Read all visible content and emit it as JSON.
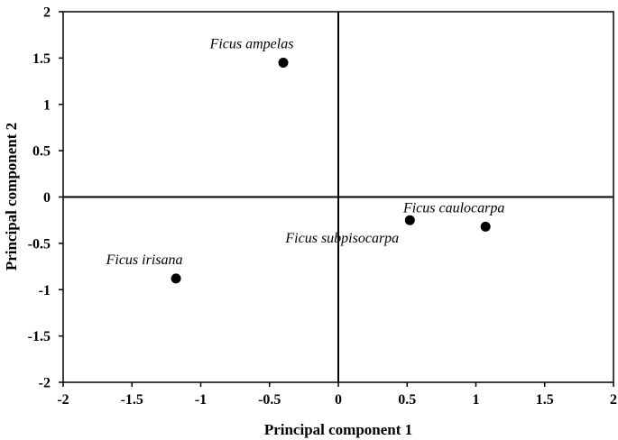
{
  "chart_data": {
    "type": "scatter",
    "title": "",
    "xlabel": "Principal component 1",
    "ylabel": "Principal component 2",
    "xlim": [
      -2,
      2
    ],
    "ylim": [
      -2,
      2
    ],
    "x_ticks": [
      "-2",
      "-1.5",
      "-1",
      "-0.5",
      "0",
      "0.5",
      "1",
      "1.5",
      "2"
    ],
    "y_ticks": [
      "2",
      "1.5",
      "1",
      "0.5",
      "0",
      "-0.5",
      "-1",
      "-1.5",
      "-2"
    ],
    "grid": false,
    "legend": "none",
    "marker_color": "#000000",
    "points": [
      {
        "label": "Ficus ampelas",
        "x": -0.4,
        "y": 1.45,
        "label_pos": "above-left"
      },
      {
        "label": "Ficus irisana",
        "x": -1.18,
        "y": -0.88,
        "label_pos": "above-left"
      },
      {
        "label": "Ficus subpisocarpa",
        "x": 0.52,
        "y": -0.25,
        "label_pos": "below-left"
      },
      {
        "label": "Ficus caulocarpa",
        "x": 1.07,
        "y": -0.32,
        "label_pos": "above-left"
      }
    ]
  }
}
